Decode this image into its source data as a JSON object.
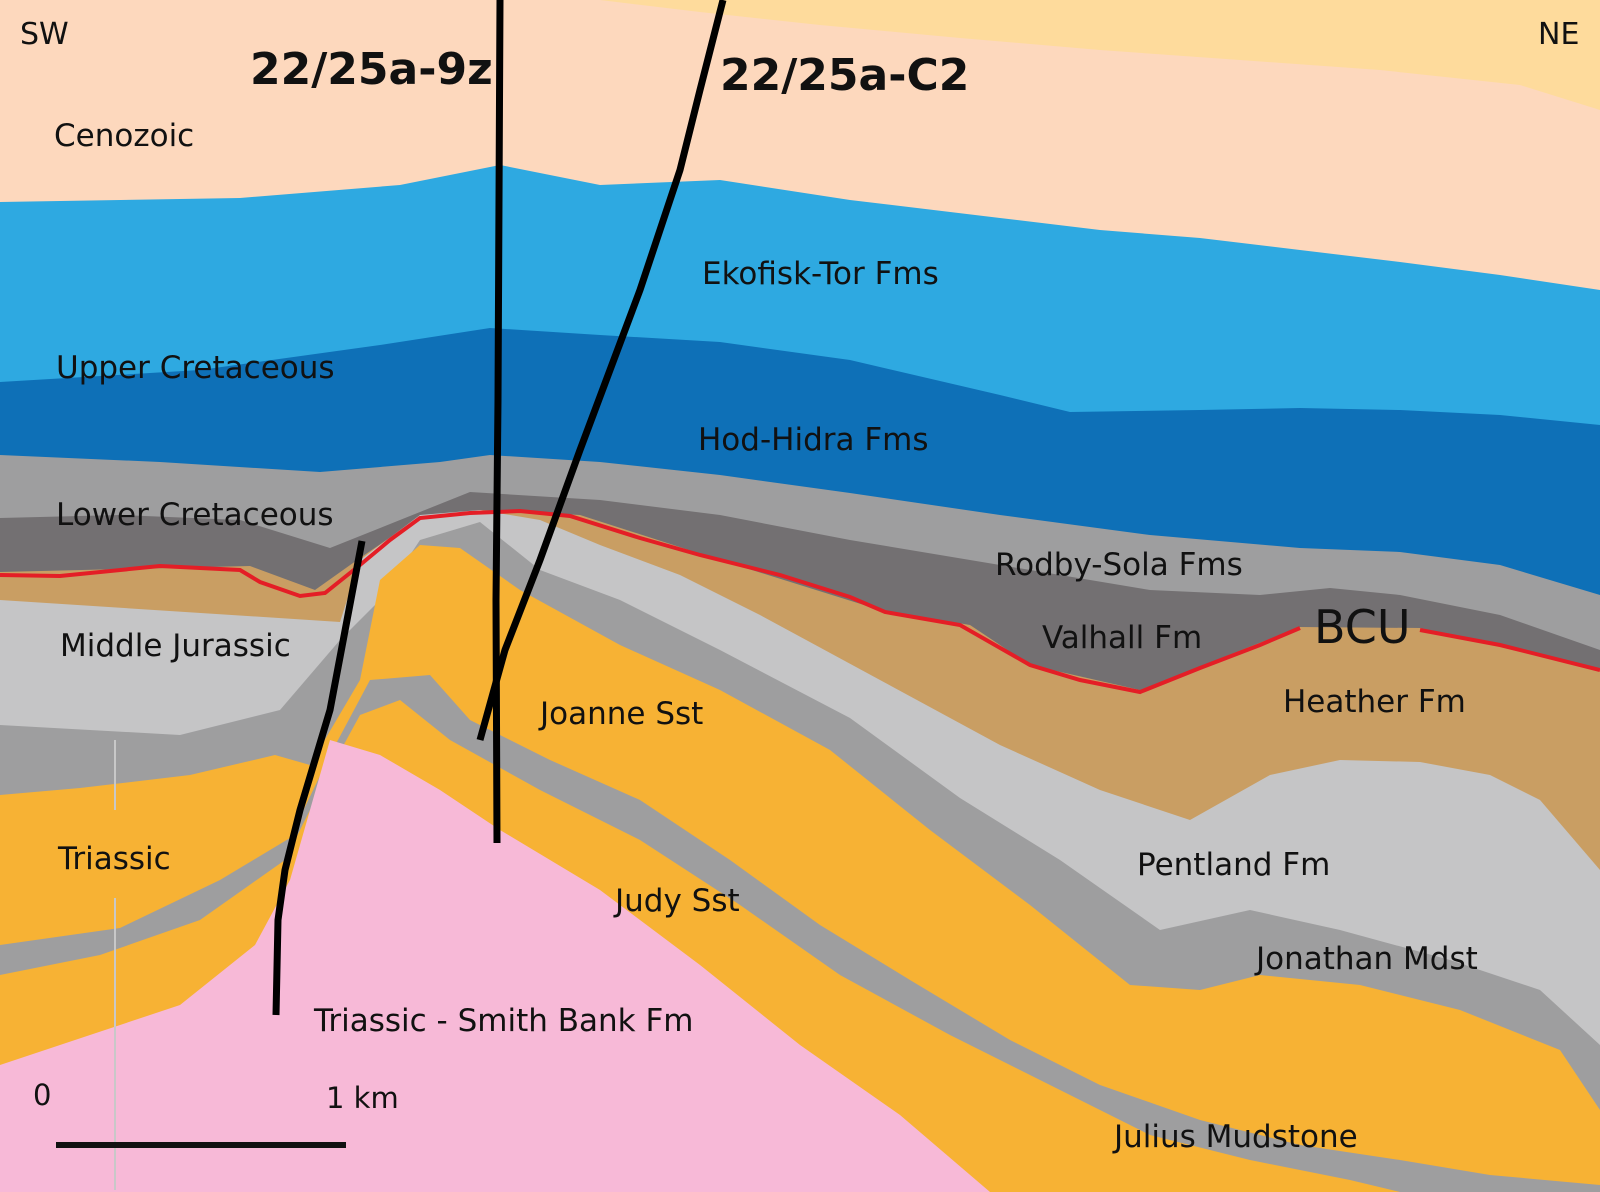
{
  "orientation": {
    "left": "SW",
    "right": "NE"
  },
  "wells": [
    {
      "id": "well-9z",
      "name": "22/25a-9z"
    },
    {
      "id": "well-c2",
      "name": "22/25a-C2"
    }
  ],
  "period_labels": {
    "cenozoic": "Cenozoic",
    "upper_cretaceous": "Upper Cretaceous",
    "lower_cretaceous": "Lower Cretaceous",
    "middle_jurassic": "Middle Jurassic",
    "triassic": "Triassic"
  },
  "formation_labels": {
    "ekofisk_tor": "Ekofisk-Tor Fms",
    "hod_hidra": "Hod-Hidra Fms",
    "rodby_sola": "Rodby-Sola Fms",
    "valhall": "Valhall Fm",
    "heather": "Heather Fm",
    "joanne": "Joanne Sst",
    "pentland": "Pentland Fm",
    "judy": "Judy Sst",
    "jonathan": "Jonathan Mdst",
    "smith_bank": "Triassic - Smith Bank Fm",
    "julius": "Julius Mudstone"
  },
  "unconformity": {
    "label": "BCU",
    "color": "#e41e26"
  },
  "scale_bar": {
    "start_label": "0",
    "end_label": "1 km"
  },
  "colors": {
    "cenozoic": "#fdd8bd",
    "cenozoic_top": "#fedb9c",
    "chalk_upper": "#2ea9e1",
    "chalk_lower": "#0e70b7",
    "lower_cretaceous": "#9e9e9f",
    "valhall": "#737072",
    "heather": "#c99e63",
    "pentland": "#c5c5c6",
    "mudstone": "#9e9e9f",
    "sandstone": "#f7b234",
    "smith_bank": "#f7b9d7",
    "well_line": "#000000"
  }
}
